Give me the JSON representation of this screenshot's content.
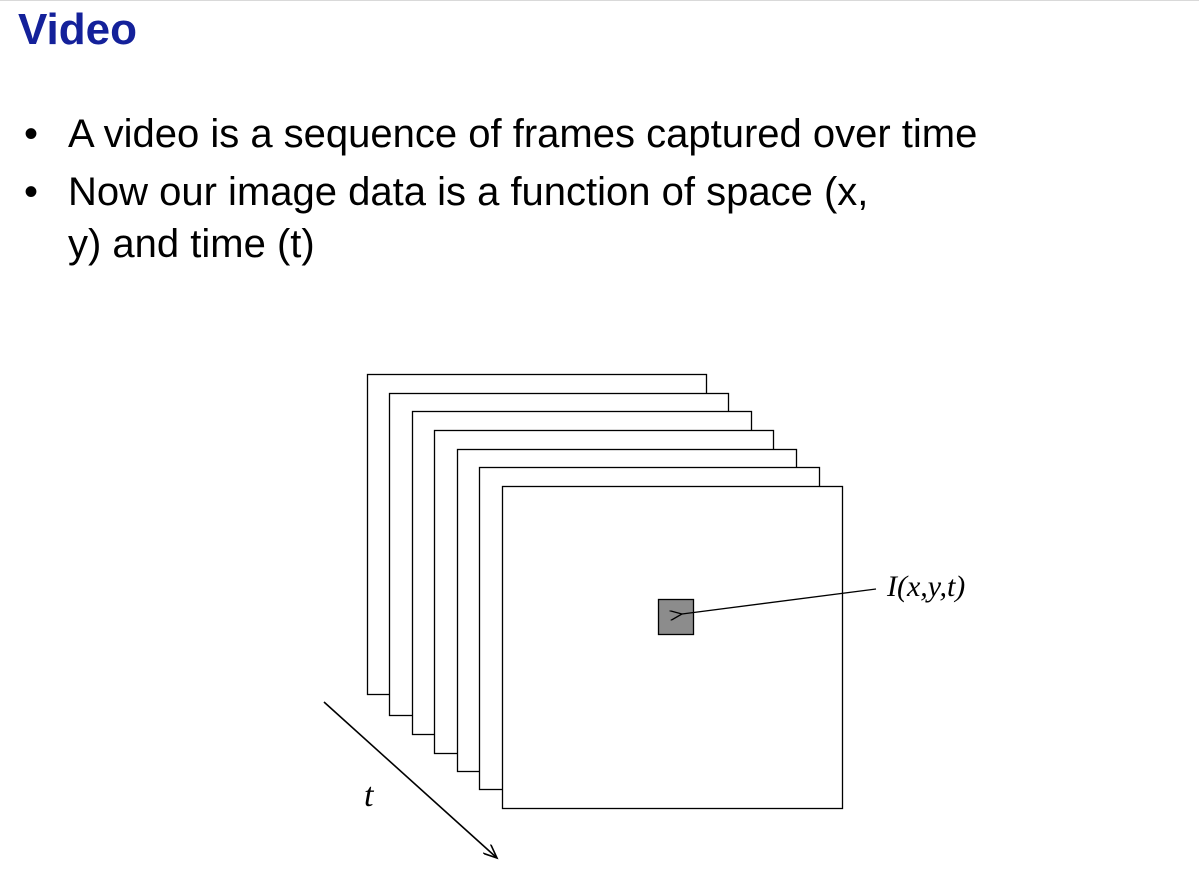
{
  "slide": {
    "title": "Video",
    "bullets": [
      {
        "marker": "•",
        "text": "A video is a sequence of frames captured over time"
      },
      {
        "marker": "•",
        "text": "Now our image data is a function of space (x, y) and time (t)"
      }
    ]
  },
  "diagram": {
    "frame_count": 7,
    "pixel_label": "I(x,y,t)",
    "time_axis_label": "t",
    "colors": {
      "title": "#14219a",
      "pixel_fill": "#8c8c8c"
    }
  }
}
